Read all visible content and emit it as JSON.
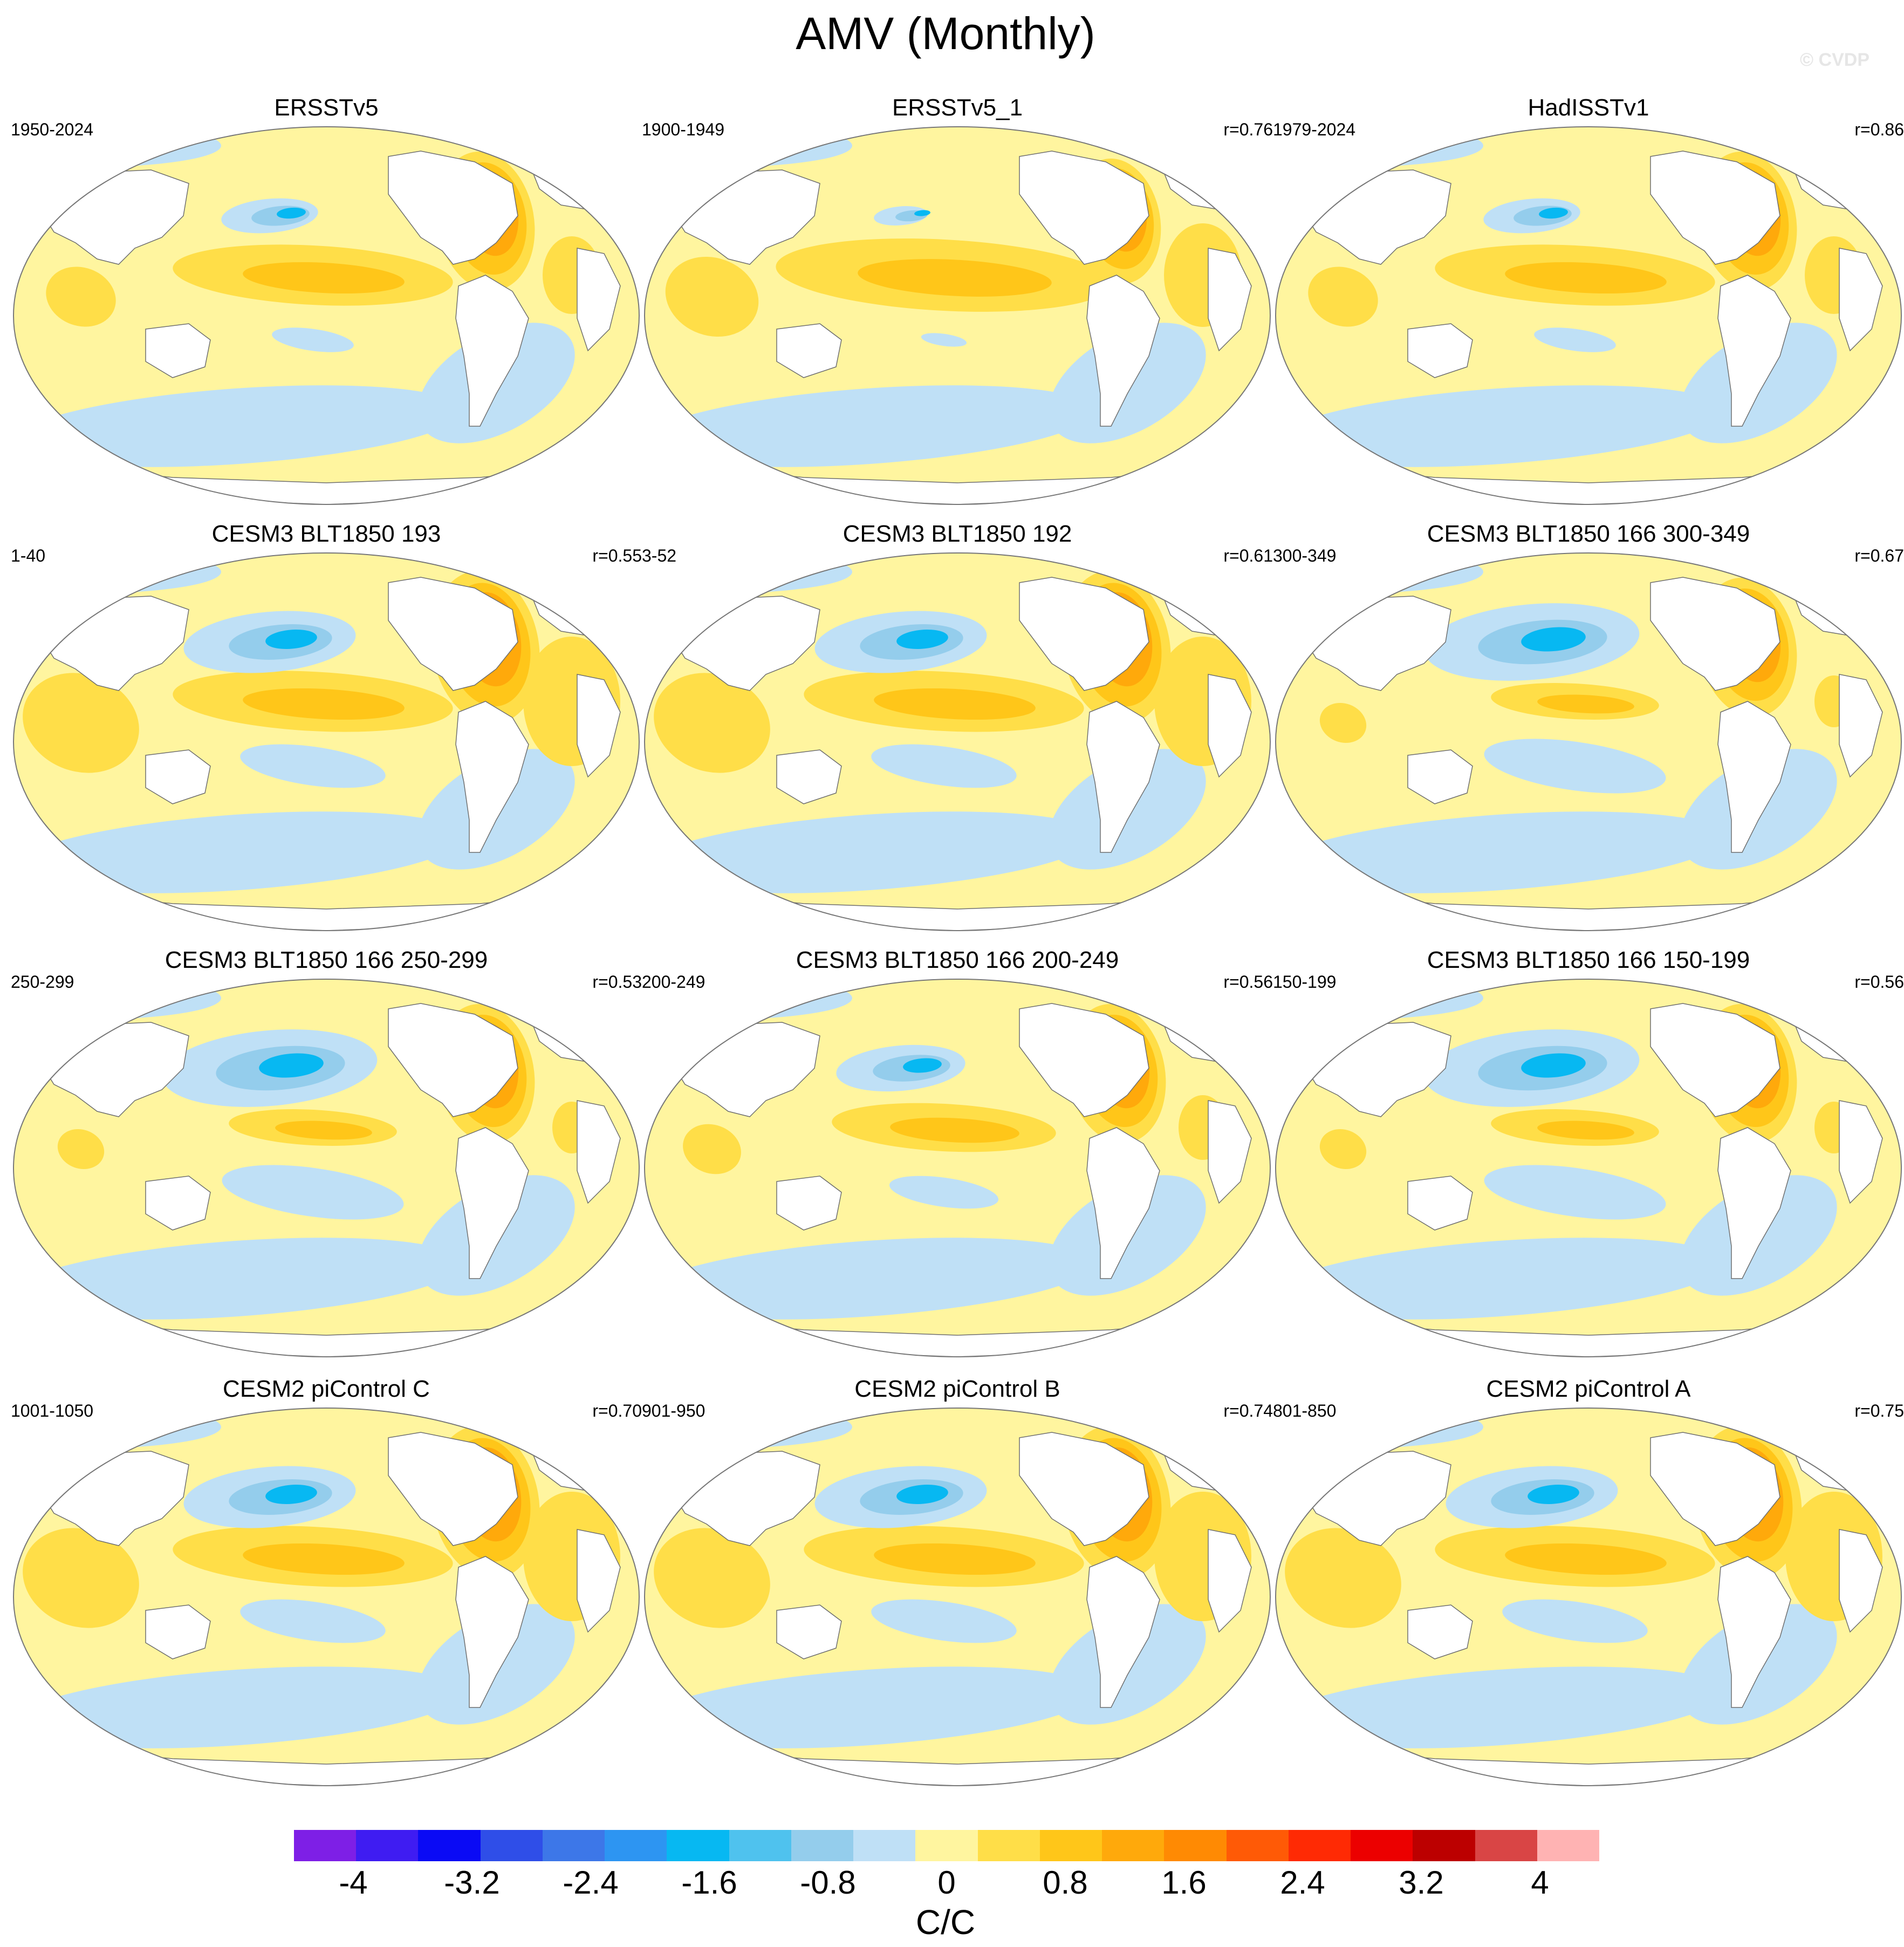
{
  "figure": {
    "title": "AMV (Monthly)",
    "copyright": "© CVDP"
  },
  "colors": {
    "ocean_neutral": "#bfe0f6",
    "ocean_warm": "#fff29a",
    "land": "#ffffff",
    "outline": "#888888"
  },
  "panels": [
    {
      "title": "ERSSTv5",
      "period": "1950-2024",
      "correlation": "",
      "pattern": "obs"
    },
    {
      "title": "ERSSTv5_1",
      "period": "1900-1949",
      "correlation": "r=0.76",
      "pattern": "obs_warm"
    },
    {
      "title": "HadISSTv1",
      "period": "1979-2024",
      "correlation": "r=0.86",
      "pattern": "obs"
    },
    {
      "title": "CESM3 BLT1850 193",
      "period": "1-40",
      "correlation": "r=0.55",
      "pattern": "model_strong"
    },
    {
      "title": "CESM3 BLT1850 192",
      "period": "3-52",
      "correlation": "r=0.61",
      "pattern": "model_strong"
    },
    {
      "title": "CESM3 BLT1850 166 300-349",
      "period": "300-349",
      "correlation": "r=0.67",
      "pattern": "model_cool"
    },
    {
      "title": "CESM3 BLT1850 166 250-299",
      "period": "250-299",
      "correlation": "r=0.53",
      "pattern": "model_cool"
    },
    {
      "title": "CESM3 BLT1850 166 200-249",
      "period": "200-249",
      "correlation": "r=0.56",
      "pattern": "model_mixed"
    },
    {
      "title": "CESM3 BLT1850 166 150-199",
      "period": "150-199",
      "correlation": "r=0.56",
      "pattern": "model_cool"
    },
    {
      "title": "CESM2 piControl C",
      "period": "1001-1050",
      "correlation": "r=0.70",
      "pattern": "model_strong"
    },
    {
      "title": "CESM2 piControl B",
      "period": "901-950",
      "correlation": "r=0.74",
      "pattern": "model_strong"
    },
    {
      "title": "CESM2 piControl A",
      "period": "801-850",
      "correlation": "r=0.75",
      "pattern": "model_strong"
    }
  ],
  "colorbar": {
    "units": "C/C",
    "colors": [
      "#7e1fe6",
      "#3f1cf2",
      "#0a0af5",
      "#2f4ee8",
      "#3d77e8",
      "#2d95f2",
      "#07b8f2",
      "#4fc2ee",
      "#94cdec",
      "#bfe0f6",
      "#fff59f",
      "#ffde48",
      "#ffc619",
      "#ffa90b",
      "#ff8a03",
      "#ff5a06",
      "#ff2a04",
      "#ec0000",
      "#bc0000",
      "#d94545",
      "#ffb3b3"
    ],
    "tick_labels": [
      "-4",
      "-3.2",
      "-2.4",
      "-1.6",
      "-0.8",
      "0",
      "0.8",
      "1.6",
      "2.4",
      "3.2",
      "4"
    ],
    "tick_values": [
      -4,
      -3.2,
      -2.4,
      -1.6,
      -0.8,
      0,
      0.8,
      1.6,
      2.4,
      3.2,
      4
    ],
    "range": [
      -4.4,
      4.4
    ]
  }
}
